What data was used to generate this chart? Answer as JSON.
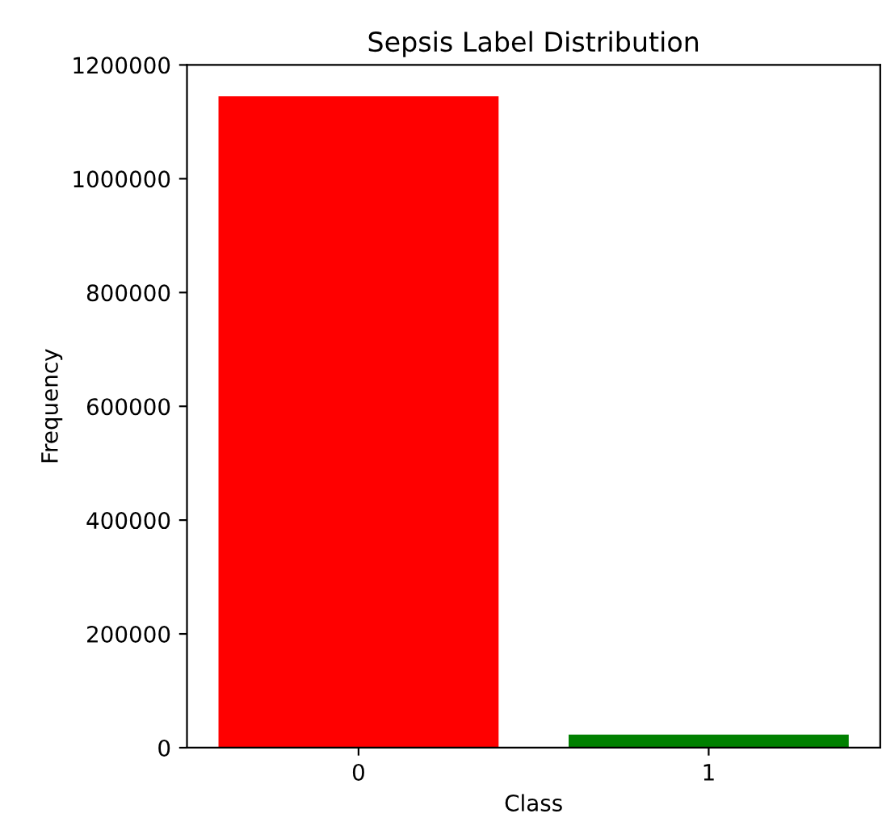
{
  "chart_data": {
    "type": "bar",
    "title": "Sepsis Label Distribution",
    "xlabel": "Class",
    "ylabel": "Frequency",
    "categories": [
      "0",
      "1"
    ],
    "values": [
      1145000,
      23000
    ],
    "colors": [
      "#ff0000",
      "#008000"
    ],
    "ylim": [
      0,
      1200000
    ],
    "yticks": [
      0,
      200000,
      400000,
      600000,
      800000,
      1000000,
      1200000
    ],
    "grid": false,
    "legend": false
  }
}
